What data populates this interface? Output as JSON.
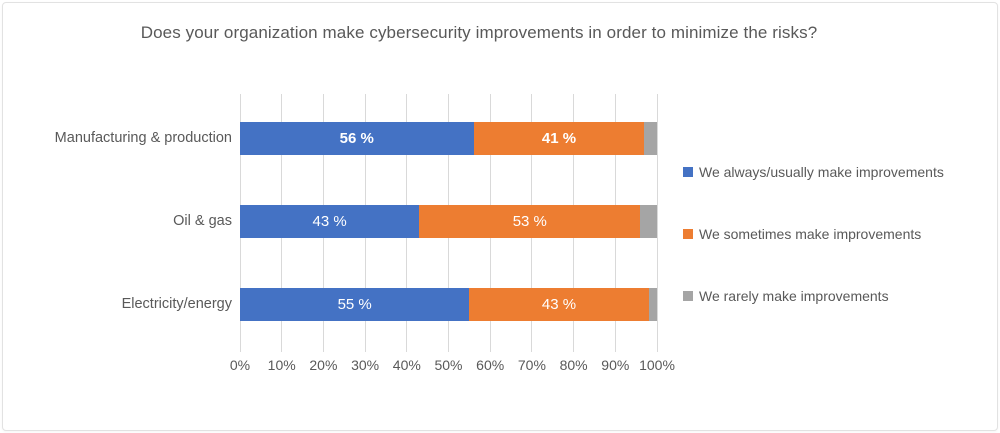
{
  "chart": {
    "title": "Does your organization make cybersecurity improvements in order to minimize the risks?"
  },
  "chart_data": {
    "type": "bar",
    "orientation": "horizontal",
    "stacked": true,
    "title": "Does your organization make cybersecurity improvements in order to minimize the risks?",
    "categories": [
      "Manufacturing & production",
      "Oil & gas",
      "Electricity/energy"
    ],
    "series": [
      {
        "name": "We always/usually make improvements",
        "color": "#4472C4",
        "values": [
          56,
          43,
          55
        ],
        "labels": [
          "56 %",
          "43 %",
          "55 %"
        ]
      },
      {
        "name": "We sometimes make improvements",
        "color": "#ED7D31",
        "values": [
          41,
          53,
          43
        ],
        "labels": [
          "41 %",
          "53 %",
          "43 %"
        ]
      },
      {
        "name": "We rarely make improvements",
        "color": "#A5A5A5",
        "values": [
          3,
          4,
          2
        ],
        "labels": [
          "",
          "",
          ""
        ]
      }
    ],
    "x_axis": {
      "min": 0,
      "max": 100,
      "ticks": [
        "0%",
        "10%",
        "20%",
        "30%",
        "40%",
        "50%",
        "60%",
        "70%",
        "80%",
        "90%",
        "100%"
      ]
    },
    "ylabel": "",
    "xlabel": "",
    "grid": true,
    "legend_position": "right",
    "bold_label_rows": [
      0
    ],
    "data_label_color": "#FFFFFF",
    "gridline_color": "#D9D9D9",
    "text_color": "#595959"
  }
}
